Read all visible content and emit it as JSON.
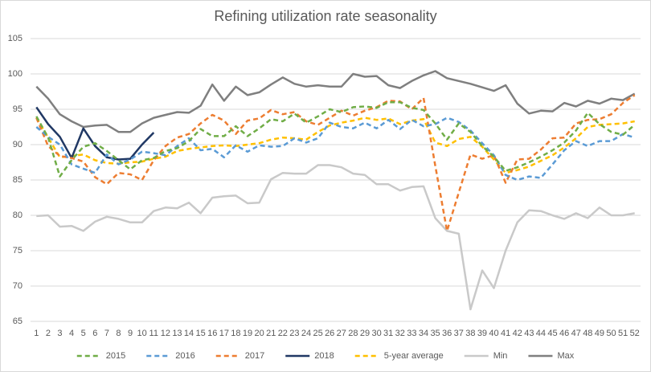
{
  "chart_data": {
    "type": "line",
    "title": "Refining utilization rate seasonality",
    "categories": [
      "1",
      "2",
      "3",
      "4",
      "5",
      "6",
      "7",
      "8",
      "9",
      "10",
      "11",
      "12",
      "13",
      "14",
      "15",
      "16",
      "17",
      "18",
      "19",
      "20",
      "21",
      "22",
      "23",
      "24",
      "25",
      "26",
      "27",
      "28",
      "29",
      "30",
      "31",
      "32",
      "33",
      "34",
      "35",
      "36",
      "37",
      "38",
      "39",
      "40",
      "41",
      "42",
      "43",
      "44",
      "45",
      "46",
      "47",
      "48",
      "49",
      "50",
      "51",
      "52"
    ],
    "ylim": [
      65,
      105
    ],
    "yticks": [
      65,
      70,
      75,
      80,
      85,
      90,
      95,
      100,
      105
    ],
    "grid": true,
    "legend": "bottom",
    "series": [
      {
        "name": "2015",
        "color": "#70ad47",
        "style": "dashed",
        "values": [
          94.0,
          91.0,
          85.5,
          87.8,
          89.7,
          90.2,
          89.1,
          87.8,
          86.5,
          87.8,
          88.1,
          89.1,
          89.5,
          90.5,
          92.2,
          91.2,
          91.2,
          92.6,
          91.2,
          92.3,
          93.6,
          93.3,
          94.4,
          93.1,
          94.0,
          95.0,
          94.6,
          95.3,
          95.4,
          95.2,
          96.0,
          96.0,
          95.2,
          94.9,
          93.0,
          90.7,
          93.0,
          91.8,
          89.8,
          88.3,
          86.3,
          86.8,
          87.5,
          88.3,
          89.2,
          90.3,
          92.0,
          94.5,
          92.9,
          91.8,
          91.4,
          92.8
        ]
      },
      {
        "name": "2016",
        "color": "#5b9bd5",
        "style": "dashed",
        "values": [
          92.5,
          91.1,
          90.0,
          87.2,
          86.6,
          86.0,
          88.6,
          87.2,
          87.9,
          89.0,
          88.8,
          88.5,
          89.8,
          90.9,
          89.2,
          89.4,
          88.2,
          89.9,
          89.0,
          89.9,
          89.7,
          89.8,
          90.9,
          90.3,
          90.9,
          93.1,
          92.5,
          92.3,
          93.1,
          92.3,
          93.5,
          92.2,
          93.5,
          92.6,
          92.9,
          93.8,
          93.2,
          92.0,
          90.2,
          88.5,
          85.7,
          85.0,
          85.5,
          85.3,
          87.2,
          89.2,
          90.5,
          89.8,
          90.5,
          90.5,
          91.5,
          91.0
        ]
      },
      {
        "name": "2017",
        "color": "#ed7d31",
        "style": "dashed",
        "values": [
          93.8,
          89.8,
          88.4,
          88.1,
          87.6,
          85.4,
          84.4,
          86.0,
          85.8,
          85.0,
          87.8,
          89.8,
          91.0,
          91.5,
          93.0,
          94.2,
          93.4,
          91.5,
          93.4,
          93.7,
          94.9,
          94.3,
          94.6,
          93.3,
          92.8,
          93.8,
          94.8,
          94.1,
          94.8,
          95.3,
          96.2,
          96.1,
          95.0,
          96.6,
          87.0,
          77.8,
          83.2,
          88.6,
          88.0,
          88.5,
          84.6,
          87.9,
          88.0,
          89.3,
          90.9,
          91.0,
          93.0,
          93.5,
          93.6,
          94.3,
          95.9,
          97.0
        ]
      },
      {
        "name": "2018",
        "color": "#203864",
        "style": "solid",
        "values": [
          95.3,
          92.9,
          91.1,
          88.1,
          92.3,
          89.8,
          88.2,
          87.9,
          88.0,
          90.0,
          91.7,
          null,
          null,
          null,
          null,
          null,
          null,
          null,
          null,
          null,
          null,
          null,
          null,
          null,
          null,
          null,
          null,
          null,
          null,
          null,
          null,
          null,
          null,
          null,
          null,
          null,
          null,
          null,
          null,
          null,
          null,
          null,
          null,
          null,
          null,
          null,
          null,
          null,
          null,
          null,
          null,
          null
        ]
      },
      {
        "name": "5-year average",
        "color": "#ffc000",
        "style": "dashed",
        "values": [
          93.8,
          91.0,
          88.2,
          88.4,
          88.6,
          87.8,
          87.4,
          87.3,
          87.5,
          87.6,
          88.0,
          88.3,
          89.1,
          89.4,
          89.6,
          89.8,
          89.9,
          89.8,
          90.0,
          90.2,
          90.7,
          91.0,
          90.9,
          90.7,
          91.8,
          92.7,
          93.1,
          93.4,
          93.8,
          93.5,
          93.7,
          92.9,
          93.4,
          93.6,
          90.3,
          89.8,
          90.8,
          91.1,
          89.7,
          87.9,
          86.0,
          86.4,
          86.9,
          87.7,
          88.5,
          89.6,
          90.9,
          92.5,
          92.8,
          92.9,
          93.0,
          93.3
        ]
      },
      {
        "name": "Min",
        "color": "#c9c9c9",
        "style": "solid",
        "values": [
          79.9,
          80.0,
          78.4,
          78.5,
          77.8,
          79.1,
          79.8,
          79.5,
          79.0,
          79.0,
          80.6,
          81.1,
          81.0,
          81.8,
          80.3,
          82.5,
          82.7,
          82.8,
          81.7,
          81.8,
          85.1,
          86.0,
          85.9,
          85.9,
          87.1,
          87.1,
          86.8,
          85.9,
          85.7,
          84.4,
          84.4,
          83.5,
          84.0,
          84.1,
          79.6,
          77.8,
          77.4,
          66.7,
          72.2,
          69.7,
          75.0,
          79.0,
          80.7,
          80.6,
          80.0,
          79.5,
          80.3,
          79.6,
          81.1,
          80.0,
          80.0,
          80.3
        ]
      },
      {
        "name": "Max",
        "color": "#7f7f7f",
        "style": "solid",
        "values": [
          98.2,
          96.5,
          94.3,
          93.3,
          92.5,
          92.7,
          92.8,
          91.8,
          91.8,
          93.0,
          93.8,
          94.2,
          94.6,
          94.5,
          95.5,
          98.5,
          96.2,
          98.2,
          97.0,
          97.4,
          98.5,
          99.5,
          98.6,
          98.2,
          98.4,
          98.2,
          98.2,
          100.0,
          99.6,
          99.7,
          98.4,
          98.0,
          99.0,
          99.8,
          100.4,
          99.4,
          99.0,
          98.6,
          98.1,
          97.6,
          98.4,
          95.8,
          94.4,
          94.8,
          94.7,
          95.9,
          95.4,
          96.2,
          95.8,
          96.5,
          96.3,
          97.2
        ]
      }
    ]
  }
}
